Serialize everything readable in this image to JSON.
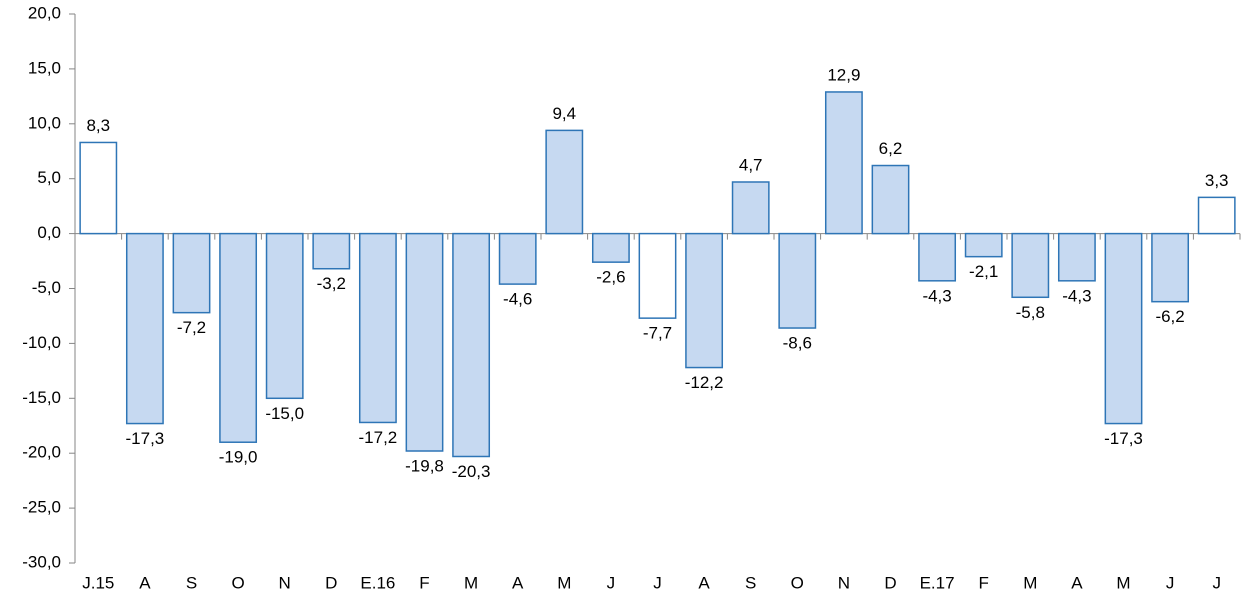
{
  "chart_data": {
    "type": "bar",
    "categories": [
      "J.15",
      "A",
      "S",
      "O",
      "N",
      "D",
      "E.16",
      "F",
      "M",
      "A",
      "M",
      "J",
      "J",
      "A",
      "S",
      "O",
      "N",
      "D",
      "E.17",
      "F",
      "M",
      "A",
      "M",
      "J",
      "J"
    ],
    "values": [
      8.3,
      -17.3,
      -7.2,
      -19.0,
      -15.0,
      -3.2,
      -17.2,
      -19.8,
      -20.3,
      -4.6,
      9.4,
      -2.6,
      -7.7,
      -12.2,
      4.7,
      -8.6,
      12.9,
      6.2,
      -4.3,
      -2.1,
      -5.8,
      -4.3,
      -17.3,
      -6.2,
      3.3
    ],
    "value_labels": [
      "8,3",
      "-17,3",
      "-7,2",
      "-19,0",
      "-15,0",
      "-3,2",
      "-17,2",
      "-19,8",
      "-20,3",
      "-4,6",
      "9,4",
      "-2,6",
      "-7,7",
      "-12,2",
      "4,7",
      "-8,6",
      "12,9",
      "6,2",
      "-4,3",
      "-2,1",
      "-5,8",
      "-4,3",
      "-17,3",
      "-6,2",
      "3,3"
    ],
    "colors": [
      "#ffffff",
      "#c6d9f1",
      "#c6d9f1",
      "#c6d9f1",
      "#c6d9f1",
      "#c6d9f1",
      "#c6d9f1",
      "#c6d9f1",
      "#c6d9f1",
      "#c6d9f1",
      "#c6d9f1",
      "#c6d9f1",
      "#ffffff",
      "#c6d9f1",
      "#c6d9f1",
      "#c6d9f1",
      "#c6d9f1",
      "#c6d9f1",
      "#c6d9f1",
      "#c6d9f1",
      "#c6d9f1",
      "#c6d9f1",
      "#c6d9f1",
      "#c6d9f1",
      "#ffffff"
    ],
    "edge_color": "#2e75b6",
    "ylim": [
      -30,
      20
    ],
    "yticks": [
      {
        "value": -30,
        "label": "-30,0"
      },
      {
        "value": -25,
        "label": "-25,0"
      },
      {
        "value": -20,
        "label": "-20,0"
      },
      {
        "value": -15,
        "label": "-15,0"
      },
      {
        "value": -10,
        "label": "-10,0"
      },
      {
        "value": -5,
        "label": "-5,0"
      },
      {
        "value": 0,
        "label": "0,0"
      },
      {
        "value": 5,
        "label": "5,0"
      },
      {
        "value": 10,
        "label": "10,0"
      },
      {
        "value": 15,
        "label": "15,0"
      },
      {
        "value": 20,
        "label": "20,0"
      }
    ],
    "grid": false
  }
}
